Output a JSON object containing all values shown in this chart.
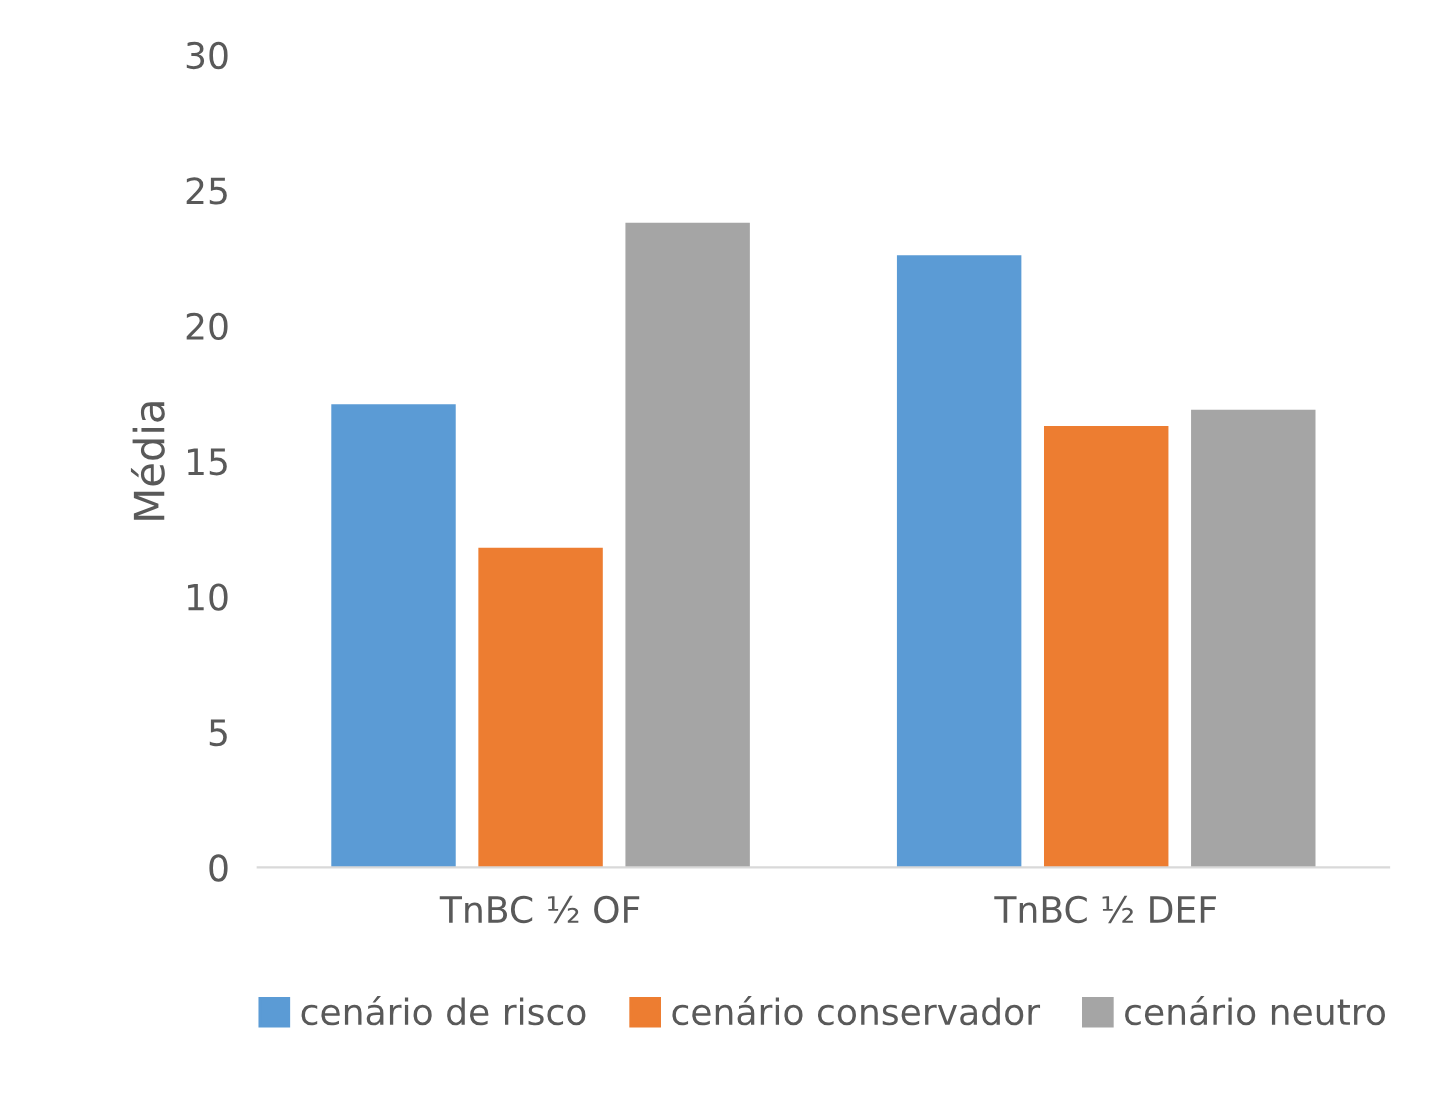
{
  "chart_data": {
    "type": "bar",
    "ylabel": "Média",
    "categories": [
      "TnBC ½ OF",
      "TnBC ½ DEF"
    ],
    "series": [
      {
        "name": "cenário de risco",
        "color": "#5b9bd5",
        "values": [
          17.1,
          22.6
        ]
      },
      {
        "name": "cenário conservador",
        "color": "#ed7d31",
        "values": [
          11.8,
          16.3
        ]
      },
      {
        "name": "cenário neutro",
        "color": "#a5a5a5",
        "values": [
          23.8,
          16.9
        ]
      }
    ],
    "ylim": [
      0,
      30
    ],
    "yticks": [
      0,
      5,
      10,
      15,
      20,
      25,
      30
    ],
    "grid": false,
    "legend": "bottom"
  }
}
